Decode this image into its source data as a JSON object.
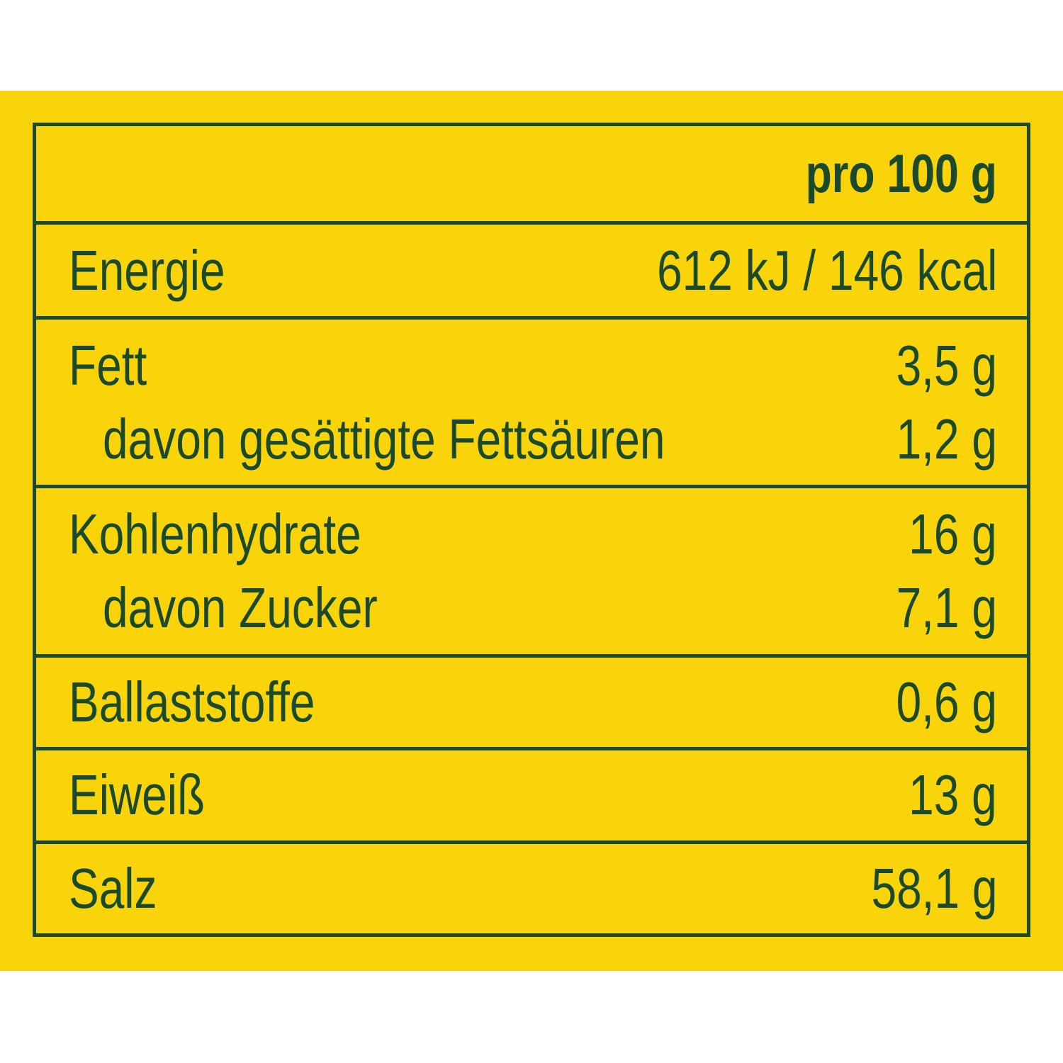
{
  "table": {
    "header": "pro 100 g",
    "sections": [
      {
        "rows": [
          {
            "label": "Energie",
            "value": "612 kJ / 146 kcal"
          }
        ]
      },
      {
        "rows": [
          {
            "label": "Fett",
            "value": "3,5 g"
          },
          {
            "label": "davon gesättigte Fettsäuren",
            "value": "1,2 g",
            "sub": true
          }
        ]
      },
      {
        "rows": [
          {
            "label": "Kohlenhydrate",
            "value": "16 g"
          },
          {
            "label": "davon Zucker",
            "value": "7,1 g",
            "sub": true
          }
        ]
      },
      {
        "rows": [
          {
            "label": "Ballaststoffe",
            "value": "0,6 g"
          }
        ]
      },
      {
        "rows": [
          {
            "label": "Eiweiß",
            "value": "13 g"
          }
        ]
      },
      {
        "rows": [
          {
            "label": "Salz",
            "value": "58,1 g"
          }
        ]
      }
    ]
  }
}
